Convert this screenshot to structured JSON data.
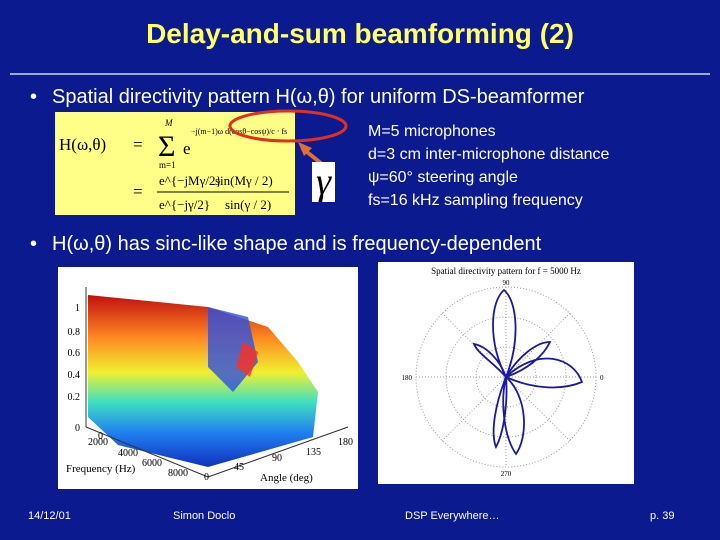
{
  "slide": {
    "title": "Delay-and-sum beamforming (2)",
    "bullet1": "Spatial directivity pattern H(ω,θ) for uniform DS-beamformer",
    "bullet2": "H(ω,θ) has sinc-like shape and is frequency-dependent",
    "params": [
      "M=5 microphones",
      "d=3 cm inter-microphone distance",
      "ψ=60° steering angle",
      "fs=16 kHz sampling frequency"
    ],
    "gamma_symbol": "γ",
    "formula": {
      "lhs": "H(ω,θ)",
      "eq": "=",
      "sum_top": "M",
      "sum_bottom": "m=1",
      "exponent": "−j(m−1)ω d(cosθ−cosψ)/c · fs",
      "rhs_num": "e^{−jMγ/2}",
      "rhs_sin_num": "sin(Mγ / 2)",
      "rhs_den": "e^{−jγ/2}",
      "rhs_sin_den": "sin(γ / 2)"
    },
    "plot3d": {
      "z_ticks": [
        "1",
        "0.8",
        "0.6",
        "0.4",
        "0.2",
        "0"
      ],
      "freq_ticks": [
        "2000",
        "4000",
        "6000",
        "8000"
      ],
      "freq_zero": "0",
      "angle_ticks": [
        "0",
        "45",
        "90",
        "135",
        "180"
      ],
      "xlabel": "Frequency (Hz)",
      "ylabel": "Angle (deg)"
    },
    "polar": {
      "title": "Spatial directivity pattern for f = 5000 Hz",
      "angle_labels": [
        "90",
        "180",
        "270",
        "0"
      ]
    },
    "footer": {
      "date": "14/12/01",
      "author": "Simon Doclo",
      "event": "DSP Everywhere…",
      "page": "p. 39"
    }
  }
}
